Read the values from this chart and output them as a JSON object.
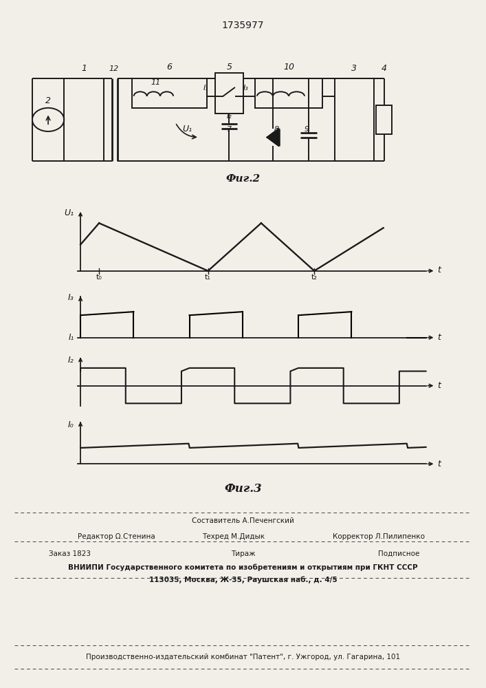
{
  "title": "1735977",
  "fig2_label": "Фиг.2",
  "fig3_label": "Фиг.3",
  "bg_color": "#f2efe9",
  "line_color": "#1a1a1a",
  "footer_sestavitel": "Составитель А.Печенгский",
  "footer_redaktor": "Редактор Ω.Стенина",
  "footer_tehred": "Техред М.Дидык",
  "footer_korrektor": "Корректор Л.Пилипенко",
  "footer_zakaz": "Заказ 1823",
  "footer_tirazh": "Тираж",
  "footer_podpisnoe": "Подписное",
  "footer_vniipи": "ВНИИПИ Государственного комитета по изобретениям и открытиям при ГКНТ СССР",
  "footer_address": "113035, Москва, Ж-35, Раушская наб., д. 4/5",
  "footer_patent": "Производственно-издательский комбинат \"Патент\", г. Ужгород, ул. Гагарина, 101"
}
